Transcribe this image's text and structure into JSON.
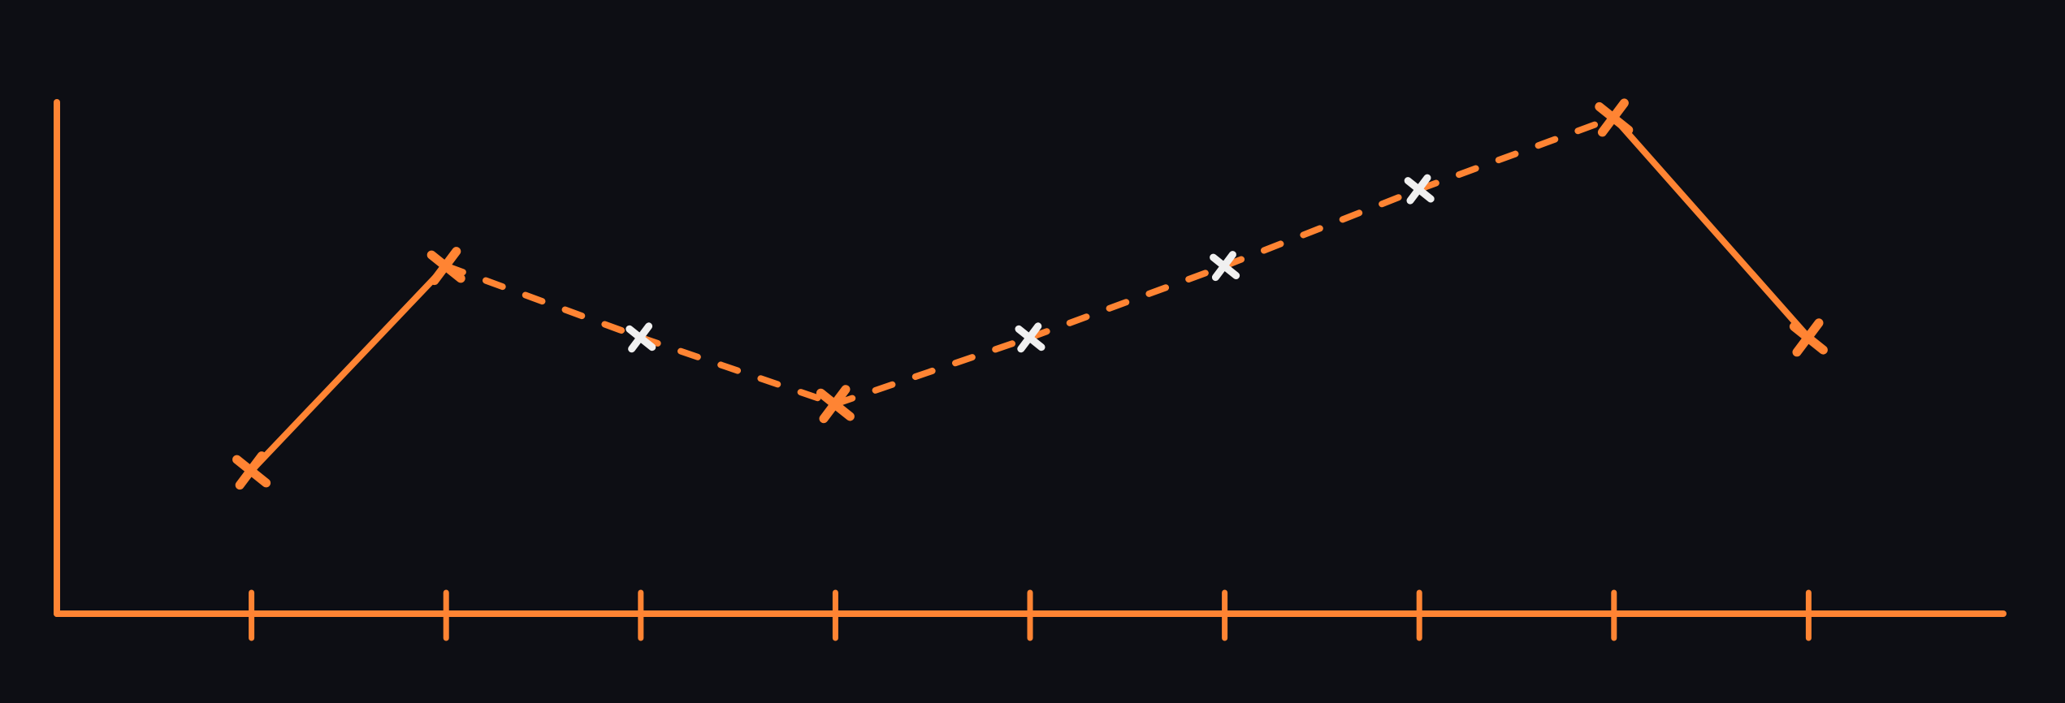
{
  "chart_data": {
    "type": "line",
    "title": "",
    "xlabel": "",
    "ylabel": "",
    "x": [
      1,
      2,
      3,
      4,
      5,
      6,
      7,
      8,
      9
    ],
    "xlim": [
      0,
      10
    ],
    "ylim": [
      0,
      100
    ],
    "grid": false,
    "legend": "none",
    "tick_labels": false,
    "series": [
      {
        "values": [
          28,
          68,
          54,
          41,
          54,
          68,
          83,
          97,
          54
        ],
        "marker_colors": [
          "#ff8433",
          "#ff8433",
          "#f0f0f0",
          "#ff8433",
          "#f0f0f0",
          "#f0f0f0",
          "#f0f0f0",
          "#ff8433",
          "#ff8433"
        ],
        "segment_styles": [
          "solid",
          "dashed",
          "dashed",
          "dashed",
          "dashed",
          "dashed",
          "dashed",
          "solid"
        ]
      }
    ]
  },
  "colors": {
    "background": "#0d0e14",
    "axis": "#ff8433",
    "line": "#ff8433",
    "interpolated_marker": "#f0f0f0"
  }
}
